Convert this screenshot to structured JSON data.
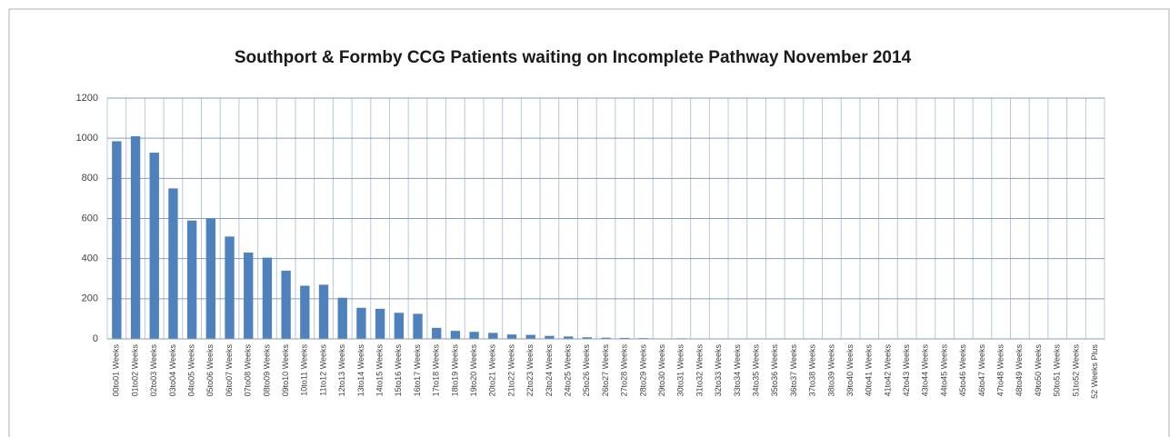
{
  "chart_data": {
    "type": "bar",
    "title": "Southport & Formby CCG Patients waiting on Incomplete Pathway November 2014",
    "categories": [
      "00to01 Weeks",
      "01to02 Weeks",
      "02to03 Weeks",
      "03to04 Weeks",
      "04to05 Weeks",
      "05to06 Weeks",
      "06to07 Weeks",
      "07to08 Weeks",
      "08to09 Weeks",
      "09to10 Weeks",
      "10to11 Weeks",
      "11to12 Weeks",
      "12to13 Weeks",
      "13to14 Weeks",
      "14to15 Weeks",
      "15to16 Weeks",
      "16to17 Weeks",
      "17to18 Weeks",
      "18to19 Weeks",
      "19to20 Weeks",
      "20to21 Weeks",
      "21to22 Weeks",
      "22to23 Weeks",
      "23to24 Weeks",
      "24to25 Weeks",
      "25to26 Weeks",
      "26to27 Weeks",
      "27to28 Weeks",
      "28to29 Weeks",
      "29to30 Weeks",
      "30to31 Weeks",
      "31to32 Weeks",
      "32to33 Weeks",
      "33to34 Weeks",
      "34to35 Weeks",
      "35to36 Weeks",
      "36to37 Weeks",
      "37to38 Weeks",
      "38to39 Weeks",
      "39to40 Weeks",
      "40to41 Weeks",
      "41to42 Weeks",
      "42to43 Weeks",
      "43to44 Weeks",
      "44to45 Weeks",
      "45to46 Weeks",
      "46to47 Weeks",
      "47to48 Weeks",
      "48to49 Weeks",
      "49to50 Weeks",
      "50to51 Weeks",
      "51to52 Weeks",
      "52 Weeks Plus"
    ],
    "values": [
      985,
      1010,
      928,
      750,
      590,
      600,
      510,
      430,
      405,
      340,
      265,
      270,
      205,
      155,
      150,
      130,
      125,
      55,
      40,
      35,
      30,
      22,
      20,
      15,
      12,
      8,
      6,
      5,
      4,
      2,
      3,
      0,
      0,
      0,
      0,
      0,
      0,
      0,
      0,
      0,
      0,
      0,
      0,
      0,
      0,
      0,
      0,
      0,
      0,
      0,
      0,
      0,
      0
    ],
    "color": "#4f81bd",
    "ylim": [
      0,
      1200
    ],
    "yticks": [
      0,
      200,
      400,
      600,
      800,
      1000,
      1200
    ],
    "grid": true
  }
}
